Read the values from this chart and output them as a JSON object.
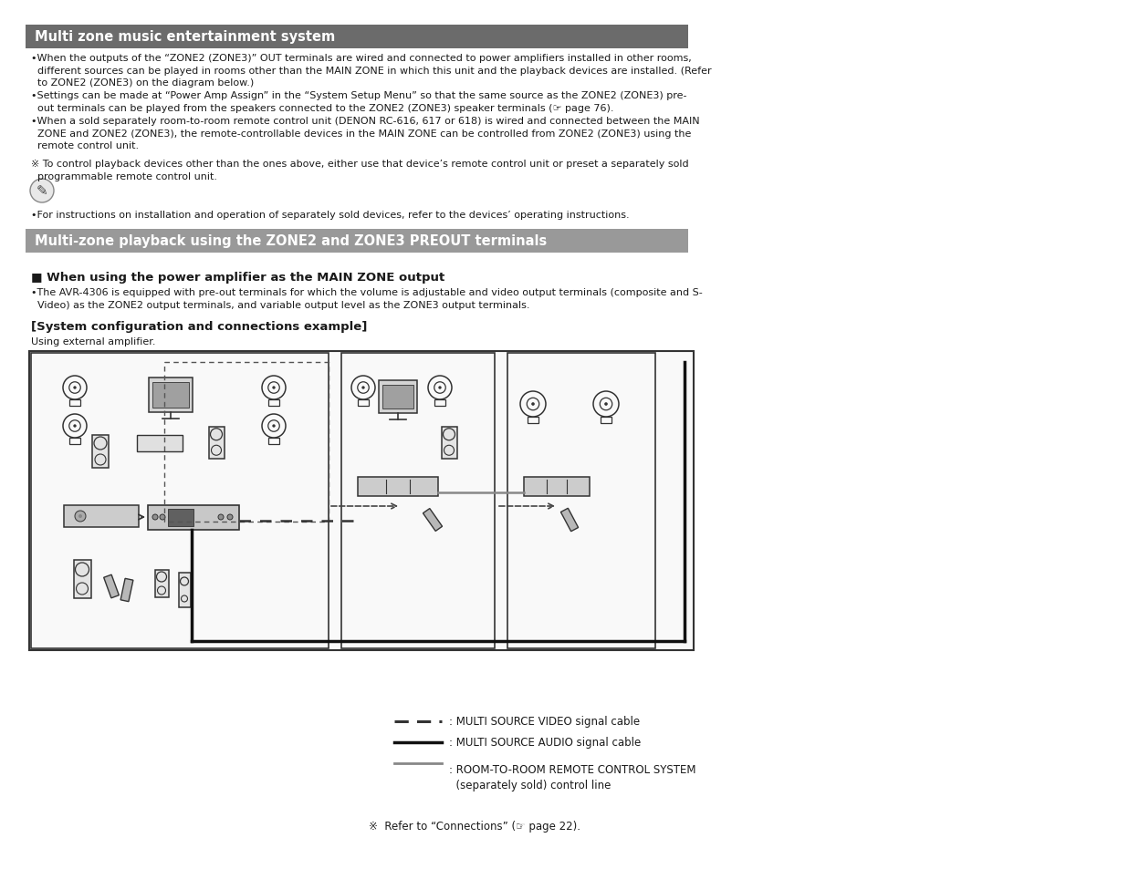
{
  "title1": "Multi zone music entertainment system",
  "title1_bg": "#6b6b6b",
  "title1_fg": "#ffffff",
  "title2": "Multi-zone playback using the ZONE2 and ZONE3 PREOUT terminals",
  "title2_bg": "#999999",
  "title2_fg": "#ffffff",
  "section_heading": "■ When using the power amplifier as the MAIN ZONE output",
  "subsection_heading": "[System configuration and connections example]",
  "subsection_sub": "Using external amplifier.",
  "bullet1": "•When the outputs of the “ZONE2 (ZONE3)” OUT terminals are wired and connected to power amplifiers installed in other rooms,\n  different sources can be played in rooms other than the MAIN ZONE in which this unit and the playback devices are installed. (Refer\n  to ZONE2 (ZONE3) on the diagram below.)",
  "bullet2": "•Settings can be made at “Power Amp Assign” in the “System Setup Menu” so that the same source as the ZONE2 (ZONE3) pre-\n  out terminals can be played from the speakers connected to the ZONE2 (ZONE3) speaker terminals (☞ page 76).",
  "bullet3": "•When a sold separately room-to-room remote control unit (DENON RC-616, 617 or 618) is wired and connected between the MAIN\n  ZONE and ZONE2 (ZONE3), the remote-controllable devices in the MAIN ZONE can be controlled from ZONE2 (ZONE3) using the\n  remote control unit.",
  "note1": "※ To control playback devices other than the ones above, either use that device’s remote control unit or preset a separately sold\n  programmable remote control unit.",
  "note2": "•For instructions on installation and operation of separately sold devices, refer to the devices’ operating instructions.",
  "avr_bullet": "•The AVR-4306 is equipped with pre-out terminals for which the volume is adjustable and video output terminals (composite and S-\n  Video) as the ZONE2 output terminals, and variable output level as the ZONE3 output terminals.",
  "legend1_label": ": MULTI SOURCE VIDEO signal cable",
  "legend2_label": ": MULTI SOURCE AUDIO signal cable",
  "legend3_label": ": ROOM-TO-ROOM REMOTE CONTROL SYSTEM\n  (separately sold) control line",
  "footnote": "※  Refer to “Connections” (☞ page 22).",
  "bg_color": "#ffffff",
  "text_color": "#1a1a1a"
}
